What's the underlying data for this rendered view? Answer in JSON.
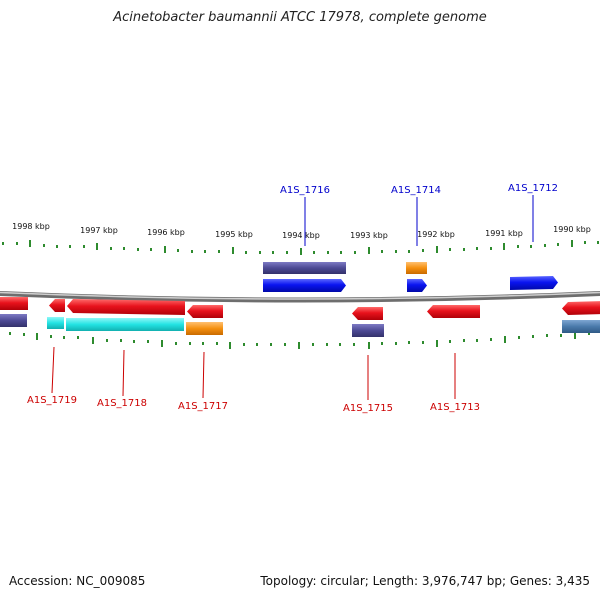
{
  "title": "Acinetobacter baumannii ATCC 17978, complete genome",
  "footer": {
    "accession": "Accession: NC_009085",
    "summary": "Topology: circular; Length: 3,976,747 bp; Genes: 3,435"
  },
  "colors": {
    "background": "#ffffff",
    "backbone": "#8a8a8a",
    "tick": "#2e8b2e",
    "forward_label": "#0000cc",
    "reverse_label": "#cc0000",
    "forward_gene": "#0a14f0",
    "reverse_gene": "#e8121c",
    "product_purple": "#4d4a94",
    "product_cyan": "#22e3e3",
    "product_orange": "#f5900f",
    "product_steel": "#4a7aab"
  },
  "icons": {
    "forward_gene": "right-arrow-icon",
    "reverse_gene": "left-arrow-icon"
  },
  "map": {
    "kbp_labels": [
      "1998 kbp",
      "1997 kbp",
      "1996 kbp",
      "1995 kbp",
      "1994 kbp",
      "1993 kbp",
      "1992 kbp",
      "1991 kbp",
      "1990 kbp"
    ],
    "forward_gene_labels": [
      "A1S_1716",
      "A1S_1714",
      "A1S_1712"
    ],
    "reverse_gene_labels": [
      "A1S_1719",
      "A1S_1718",
      "A1S_1717",
      "A1S_1715",
      "A1S_1713"
    ]
  }
}
